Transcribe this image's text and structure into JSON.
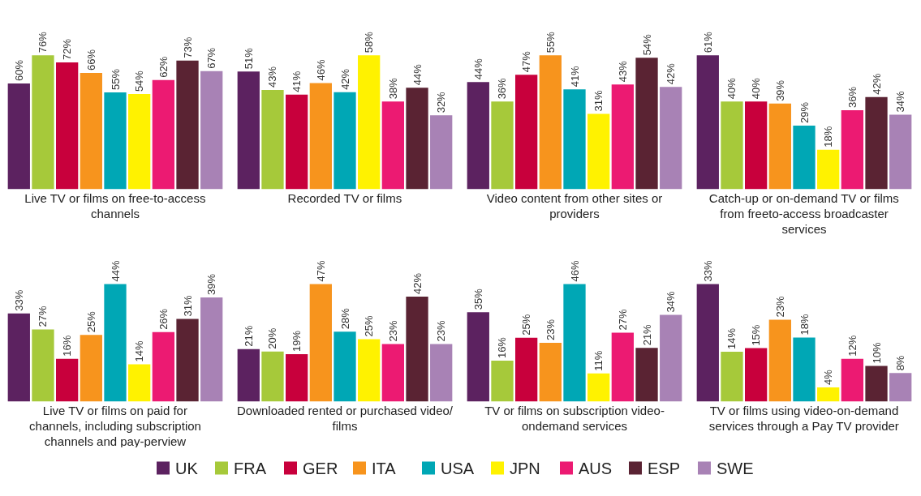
{
  "chart_data": [
    {
      "type": "bar",
      "xlabel": "Live TV or films on free-to-access channels",
      "categories": [
        null
      ],
      "data_labels": false,
      "series": [
        {
          "color": "#5c2260",
          "values": [
            60
          ],
          "value_labels": [
            "60%"
          ]
        },
        {
          "color": "#a6c93a",
          "values": [
            76
          ],
          "value_labels": [
            "76%"
          ]
        },
        {
          "color": "#c8003c",
          "values": [
            72
          ],
          "value_labels": [
            "72%"
          ]
        },
        {
          "color": "#f7941d",
          "values": [
            66
          ],
          "value_labels": [
            "66%"
          ]
        },
        {
          "color": "#00a7b5",
          "values": [
            55
          ],
          "value_labels": [
            "55%"
          ]
        },
        {
          "color": "#fff200",
          "values": [
            54
          ],
          "value_labels": [
            "54%"
          ]
        },
        {
          "color": "#ec1a72",
          "values": [
            62
          ],
          "value_labels": [
            "62%"
          ]
        },
        {
          "color": "#5a2333",
          "values": [
            73
          ],
          "value_labels": [
            "73%"
          ]
        },
        {
          "color": "#a882b5",
          "values": [
            67
          ],
          "value_labels": [
            "67%"
          ]
        }
      ]
    },
    {
      "type": "bar",
      "xlabel": "Recorded TV or films",
      "categories": [
        null
      ],
      "series": [
        {
          "color": "#5c2260",
          "values": [
            51
          ],
          "value_labels": [
            "51%"
          ]
        },
        {
          "color": "#a6c93a",
          "values": [
            43
          ],
          "value_labels": [
            "43%"
          ]
        },
        {
          "color": "#c8003c",
          "values": [
            41
          ],
          "value_labels": [
            "41%"
          ]
        },
        {
          "color": "#f7941d",
          "values": [
            46
          ],
          "value_labels": [
            "46%"
          ]
        },
        {
          "color": "#00a7b5",
          "values": [
            42
          ],
          "value_labels": [
            "42%"
          ]
        },
        {
          "color": "#fff200",
          "values": [
            58
          ],
          "value_labels": [
            "58%"
          ]
        },
        {
          "color": "#ec1a72",
          "values": [
            38
          ],
          "value_labels": [
            "38%"
          ]
        },
        {
          "color": "#5a2333",
          "values": [
            44
          ],
          "value_labels": [
            "44%"
          ]
        },
        {
          "color": "#a882b5",
          "values": [
            32
          ],
          "value_labels": [
            "32%"
          ]
        }
      ]
    },
    {
      "type": "bar",
      "xlabel": "Video content from other sites or providers",
      "categories": [
        null
      ],
      "series": [
        {
          "color": "#5c2260",
          "values": [
            44
          ],
          "value_labels": [
            "44%"
          ]
        },
        {
          "color": "#a6c93a",
          "values": [
            36
          ],
          "value_labels": [
            "36%"
          ]
        },
        {
          "color": "#c8003c",
          "values": [
            47
          ],
          "value_labels": [
            "47%"
          ]
        },
        {
          "color": "#f7941d",
          "values": [
            55
          ],
          "value_labels": [
            "55%"
          ]
        },
        {
          "color": "#00a7b5",
          "values": [
            41
          ],
          "value_labels": [
            "41%"
          ]
        },
        {
          "color": "#fff200",
          "values": [
            31
          ],
          "value_labels": [
            "31%"
          ]
        },
        {
          "color": "#ec1a72",
          "values": [
            43
          ],
          "value_labels": [
            "43%"
          ]
        },
        {
          "color": "#5a2333",
          "values": [
            54
          ],
          "value_labels": [
            "54%"
          ]
        },
        {
          "color": "#a882b5",
          "values": [
            42
          ],
          "value_labels": [
            "42%"
          ]
        }
      ]
    },
    {
      "type": "bar",
      "xlabel": "Catch-up or on-demand TV or films from freeto-access broadcaster services",
      "categories": [
        null
      ],
      "series": [
        {
          "color": "#5c2260",
          "values": [
            61
          ],
          "value_labels": [
            "61%"
          ]
        },
        {
          "color": "#a6c93a",
          "values": [
            40
          ],
          "value_labels": [
            "40%"
          ]
        },
        {
          "color": "#c8003c",
          "values": [
            40
          ],
          "value_labels": [
            "40%"
          ]
        },
        {
          "color": "#f7941d",
          "values": [
            39
          ],
          "value_labels": [
            "39%"
          ]
        },
        {
          "color": "#00a7b5",
          "values": [
            29
          ],
          "value_labels": [
            "29%"
          ]
        },
        {
          "color": "#fff200",
          "values": [
            18
          ],
          "value_labels": [
            "18%"
          ]
        },
        {
          "color": "#ec1a72",
          "values": [
            36
          ],
          "value_labels": [
            "36%"
          ]
        },
        {
          "color": "#5a2333",
          "values": [
            42
          ],
          "value_labels": [
            "42%"
          ]
        },
        {
          "color": "#a882b5",
          "values": [
            34
          ],
          "value_labels": [
            "34%"
          ]
        }
      ]
    },
    {
      "type": "bar",
      "xlabel": "Live TV or films on paid for channels, including subscription channels and pay-perview",
      "categories": [
        null
      ],
      "series": [
        {
          "color": "#5c2260",
          "values": [
            33
          ],
          "value_labels": [
            "33%"
          ]
        },
        {
          "color": "#a6c93a",
          "values": [
            27
          ],
          "value_labels": [
            "27%"
          ]
        },
        {
          "color": "#c8003c",
          "values": [
            16
          ],
          "value_labels": [
            "16%"
          ]
        },
        {
          "color": "#f7941d",
          "values": [
            25
          ],
          "value_labels": [
            "25%"
          ]
        },
        {
          "color": "#00a7b5",
          "values": [
            44
          ],
          "value_labels": [
            "44%"
          ]
        },
        {
          "color": "#fff200",
          "values": [
            14
          ],
          "value_labels": [
            "14%"
          ]
        },
        {
          "color": "#ec1a72",
          "values": [
            26
          ],
          "value_labels": [
            "26%"
          ]
        },
        {
          "color": "#5a2333",
          "values": [
            31
          ],
          "value_labels": [
            "31%"
          ]
        },
        {
          "color": "#a882b5",
          "values": [
            39
          ],
          "value_labels": [
            "39%"
          ]
        }
      ]
    },
    {
      "type": "bar",
      "xlabel": "Downloaded rented or purchased video/ films",
      "categories": [
        null
      ],
      "series": [
        {
          "color": "#5c2260",
          "values": [
            21
          ],
          "value_labels": [
            "21%"
          ]
        },
        {
          "color": "#a6c93a",
          "values": [
            20
          ],
          "value_labels": [
            "20%"
          ]
        },
        {
          "color": "#c8003c",
          "values": [
            19
          ],
          "value_labels": [
            "19%"
          ]
        },
        {
          "color": "#f7941d",
          "values": [
            47
          ],
          "value_labels": [
            "47%"
          ]
        },
        {
          "color": "#00a7b5",
          "values": [
            28
          ],
          "value_labels": [
            "28%"
          ]
        },
        {
          "color": "#fff200",
          "values": [
            25
          ],
          "value_labels": [
            "25%"
          ]
        },
        {
          "color": "#ec1a72",
          "values": [
            23
          ],
          "value_labels": [
            "23%"
          ]
        },
        {
          "color": "#5a2333",
          "values": [
            42
          ],
          "value_labels": [
            "42%"
          ]
        },
        {
          "color": "#a882b5",
          "values": [
            23
          ],
          "value_labels": [
            "23%"
          ]
        }
      ]
    },
    {
      "type": "bar",
      "xlabel": "TV or films on subscription video-ondemand services",
      "categories": [
        null
      ],
      "series": [
        {
          "color": "#5c2260",
          "values": [
            35
          ],
          "value_labels": [
            "35%"
          ]
        },
        {
          "color": "#a6c93a",
          "values": [
            16
          ],
          "value_labels": [
            "16%"
          ]
        },
        {
          "color": "#c8003c",
          "values": [
            25
          ],
          "value_labels": [
            "25%"
          ]
        },
        {
          "color": "#f7941d",
          "values": [
            23
          ],
          "value_labels": [
            "23%"
          ]
        },
        {
          "color": "#00a7b5",
          "values": [
            46
          ],
          "value_labels": [
            "46%"
          ]
        },
        {
          "color": "#fff200",
          "values": [
            11
          ],
          "value_labels": [
            "11%"
          ]
        },
        {
          "color": "#ec1a72",
          "values": [
            27
          ],
          "value_labels": [
            "27%"
          ]
        },
        {
          "color": "#5a2333",
          "values": [
            21
          ],
          "value_labels": [
            "21%"
          ]
        },
        {
          "color": "#a882b5",
          "values": [
            34
          ],
          "value_labels": [
            "34%"
          ]
        }
      ]
    },
    {
      "type": "bar",
      "xlabel": "TV or films using video-on-demand services through a Pay TV provider",
      "categories": [
        null
      ],
      "legend": "bottom",
      "series": [
        {
          "name": "UK",
          "color": "#5c2260",
          "values": [
            33
          ],
          "value_labels": [
            "33%"
          ]
        },
        {
          "name": "FRA",
          "color": "#a6c93a",
          "values": [
            14
          ],
          "value_labels": [
            "14%"
          ]
        },
        {
          "name": "GER",
          "color": "#c8003c",
          "values": [
            15
          ],
          "value_labels": [
            "15%"
          ]
        },
        {
          "name": "ITA",
          "color": "#f7941d",
          "values": [
            23
          ],
          "value_labels": [
            "23%"
          ]
        },
        {
          "name": "USA",
          "color": "#00a7b5",
          "values": [
            18
          ],
          "value_labels": [
            "18%"
          ]
        },
        {
          "name": "JPN",
          "color": "#fff200",
          "values": [
            4
          ],
          "value_labels": [
            "4%"
          ]
        },
        {
          "name": "AUS",
          "color": "#ec1a72",
          "values": [
            12
          ],
          "value_labels": [
            "12%"
          ]
        },
        {
          "name": "ESP",
          "color": "#5a2333",
          "values": [
            10
          ],
          "value_labels": [
            "10%"
          ]
        },
        {
          "name": "SWE",
          "color": "#a882b5",
          "values": [
            8
          ],
          "value_labels": [
            "8%"
          ]
        }
      ]
    }
  ]
}
